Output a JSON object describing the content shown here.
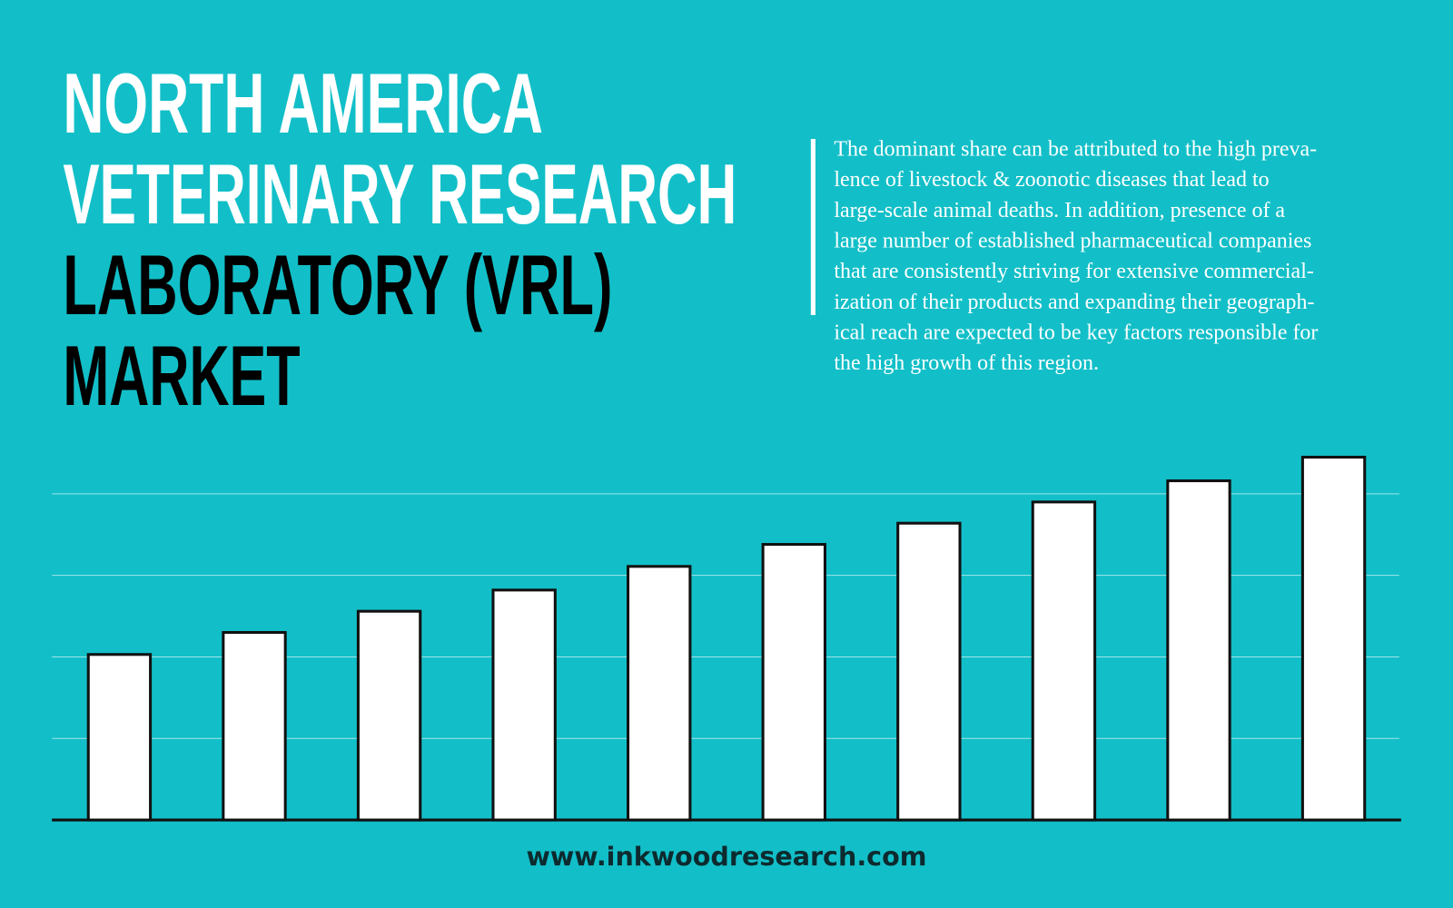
{
  "chart_data": {
    "type": "bar",
    "title_lines": [
      "NORTH AMERICA",
      "VETERINARY RESEARCH",
      "LABORATORY (VRL)",
      "MARKET"
    ],
    "title_colors": [
      "#ffffff",
      "#ffffff",
      "#000000",
      "#000000"
    ],
    "description_lines": [
      "The dominant share can be attributed to the high preva-",
      "lence of livestock & zoonotic diseases that lead to",
      "large-scale animal deaths. In addition, presence of a",
      "large number of established pharmaceutical companies",
      "that are consistently striving for extensive commercial-",
      "ization of their products and expanding their geograph-",
      "ical reach are expected to be key factors responsible for",
      "the high growth of this region."
    ],
    "footer": "www.inkwoodresearch.com",
    "categories": [
      null,
      null,
      null,
      null,
      null,
      null,
      null,
      null,
      null,
      null
    ],
    "values": [
      2.03,
      2.3,
      2.56,
      2.82,
      3.11,
      3.38,
      3.64,
      3.9,
      4.16,
      4.45
    ],
    "color": "#ffffff",
    "background": "#12bfc8",
    "ylim": [
      0,
      4.5
    ],
    "yticks": [
      0,
      1,
      2,
      3,
      4
    ],
    "grid": true,
    "show_tick_labels": false
  }
}
